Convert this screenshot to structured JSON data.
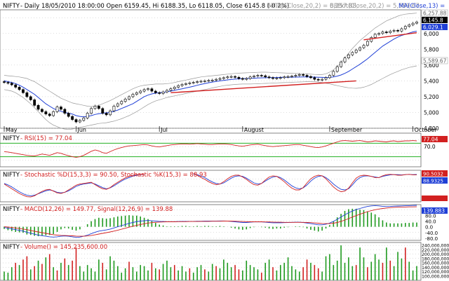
{
  "header": {
    "symbol": "NIFTY",
    "info": "- Daily 18/05/2010 18:00:00 Open 6159.45, Hi 6188.35, Lo 6118.05, Close 6145.8 (-0.2%)",
    "bb_top": "BBTop(Close,20,2) = 6,257.88,",
    "bb_bot": "BBBot(Close,20,2) = 5,589.67,",
    "ma": "MA(Close,13) ="
  },
  "panels": {
    "price": {
      "price_label": "6,145.8",
      "ma_label": "6,029.1",
      "bbtop_label": "6,257.88",
      "bbbot_label": "5,589.67",
      "yticks": [
        "6,000",
        "5,800",
        "5,600",
        "5,400",
        "5,200",
        "5,000",
        "4,800"
      ],
      "months": [
        "May",
        "Jun",
        "Jul",
        "August",
        "September",
        "October"
      ]
    },
    "rsi": {
      "symbol": "NIFTY",
      "title": "- RSI(15) = 77.04",
      "label": "77.04",
      "yticks": [
        "70.0"
      ]
    },
    "stoch": {
      "symbol": "NIFTY",
      "title": "- Stochastic %D(15,3,3) = 90.50, Stochastic %K(15,3) = 88.93",
      "d_label": "90.5032",
      "k_label": "88.9325"
    },
    "macd": {
      "symbol": "NIFTY",
      "title": "- MACD(12,26) = 149.77, Signal(12,26,9) = 139.88",
      "label": "139.883",
      "yticks": [
        "80.0",
        "40.0",
        "0.0",
        "-40.0",
        "-80.0"
      ]
    },
    "volume": {
      "symbol": "NIFTY",
      "title": "- Volume() = 145,235,600.00",
      "yticks": [
        "240,000,000",
        "220,000,000",
        "200,000,000",
        "180,000,000",
        "160,000,000",
        "140,000,000",
        "120,000,000",
        "100,000,000"
      ]
    }
  },
  "colors": {
    "ma": "#1f3fd6",
    "bb": "#999999",
    "trend": "#d22020",
    "rsi": "#d22020",
    "rsi_band": "#22b122",
    "stoch_d": "#1f3fd6",
    "stoch_k": "#d22020",
    "macd": "#1f3fd6",
    "signal": "#d22020",
    "hist": "#1f9a1f",
    "vol_up": "#1f9a1f",
    "vol_dn": "#d22020",
    "label_red": "#d22020",
    "label_blue": "#1f3fd6"
  },
  "chart_data": {
    "type": "candlestick",
    "price": {
      "ylim": [
        4800,
        6300
      ],
      "months": [
        [
          "May",
          0
        ],
        [
          "Jun",
          19
        ],
        [
          "Jul",
          41
        ],
        [
          "August",
          63
        ],
        [
          "September",
          86
        ],
        [
          "October",
          108
        ]
      ],
      "closes": [
        5380,
        5370,
        5350,
        5320,
        5290,
        5250,
        5200,
        5160,
        5090,
        5040,
        5010,
        4980,
        4960,
        5010,
        5070,
        5040,
        4990,
        4950,
        4910,
        4880,
        4900,
        4930,
        4990,
        5050,
        5080,
        5050,
        4990,
        4970,
        5020,
        5080,
        5110,
        5140,
        5170,
        5200,
        5230,
        5250,
        5270,
        5290,
        5300,
        5270,
        5250,
        5240,
        5260,
        5280,
        5300,
        5320,
        5340,
        5355,
        5365,
        5375,
        5380,
        5390,
        5395,
        5400,
        5405,
        5410,
        5420,
        5430,
        5440,
        5450,
        5455,
        5445,
        5430,
        5420,
        5430,
        5450,
        5460,
        5470,
        5465,
        5450,
        5440,
        5430,
        5435,
        5440,
        5450,
        5455,
        5460,
        5470,
        5480,
        5470,
        5455,
        5440,
        5420,
        5410,
        5420,
        5440,
        5470,
        5520,
        5580,
        5640,
        5690,
        5730,
        5760,
        5790,
        5820,
        5850,
        5900,
        5950,
        5990,
        6000,
        6020,
        6010,
        6030,
        6040,
        6030,
        6060,
        6090,
        6110,
        6130,
        6145.8
      ],
      "ma13": [
        5400,
        5390,
        5380,
        5365,
        5345,
        5320,
        5290,
        5260,
        5230,
        5190,
        5150,
        5110,
        5080,
        5050,
        5030,
        5015,
        5000,
        4990,
        4980,
        4960,
        4950,
        4945,
        4950,
        4960,
        4975,
        4985,
        4990,
        4995,
        5000,
        5015,
        5030,
        5050,
        5070,
        5090,
        5110,
        5140,
        5170,
        5200,
        5220,
        5235,
        5245,
        5250,
        5255,
        5262,
        5270,
        5280,
        5290,
        5300,
        5310,
        5320,
        5332,
        5344,
        5356,
        5366,
        5376,
        5385,
        5393,
        5400,
        5406,
        5412,
        5418,
        5422,
        5426,
        5428,
        5430,
        5432,
        5434,
        5436,
        5438,
        5440,
        5441,
        5442,
        5443,
        5444,
        5445,
        5446,
        5447,
        5448,
        5449,
        5450,
        5450,
        5449,
        5448,
        5446,
        5444,
        5443,
        5444,
        5450,
        5460,
        5475,
        5495,
        5520,
        5550,
        5580,
        5610,
        5645,
        5680,
        5720,
        5760,
        5800,
        5840,
        5870,
        5900,
        5930,
        5955,
        5975,
        5990,
        6005,
        6020,
        6029.1
      ],
      "bbtop": [
        5470,
        5465,
        5460,
        5455,
        5450,
        5440,
        5430,
        5410,
        5390,
        5360,
        5330,
        5300,
        5270,
        5240,
        5210,
        5180,
        5160,
        5140,
        5120,
        5110,
        5100,
        5090,
        5080,
        5075,
        5080,
        5090,
        5110,
        5130,
        5150,
        5175,
        5200,
        5225,
        5250,
        5275,
        5300,
        5320,
        5335,
        5345,
        5350,
        5355,
        5360,
        5360,
        5360,
        5365,
        5370,
        5380,
        5390,
        5400,
        5410,
        5420,
        5430,
        5440,
        5450,
        5455,
        5460,
        5465,
        5470,
        5475,
        5480,
        5485,
        5490,
        5495,
        5498,
        5500,
        5502,
        5504,
        5506,
        5508,
        5510,
        5510,
        5508,
        5506,
        5504,
        5502,
        5500,
        5498,
        5496,
        5494,
        5492,
        5490,
        5488,
        5485,
        5482,
        5480,
        5480,
        5490,
        5510,
        5540,
        5580,
        5630,
        5690,
        5750,
        5810,
        5860,
        5910,
        5950,
        5990,
        6030,
        6070,
        6100,
        6130,
        6160,
        6180,
        6200,
        6220,
        6235,
        6245,
        6250,
        6255,
        6257.88
      ],
      "bbbot": [
        5290,
        5280,
        5270,
        5250,
        5220,
        5190,
        5150,
        5110,
        5060,
        5010,
        4960,
        4910,
        4870,
        4840,
        4820,
        4800,
        4790,
        4785,
        4790,
        4800,
        4810,
        4820,
        4830,
        4840,
        4850,
        4860,
        4865,
        4870,
        4880,
        4890,
        4905,
        4920,
        4940,
        4960,
        4985,
        5010,
        5040,
        5070,
        5100,
        5125,
        5145,
        5160,
        5175,
        5190,
        5200,
        5210,
        5220,
        5230,
        5240,
        5250,
        5260,
        5270,
        5280,
        5290,
        5300,
        5310,
        5320,
        5330,
        5340,
        5345,
        5350,
        5355,
        5358,
        5360,
        5360,
        5360,
        5362,
        5364,
        5366,
        5368,
        5370,
        5372,
        5374,
        5376,
        5378,
        5380,
        5382,
        5384,
        5386,
        5388,
        5390,
        5392,
        5390,
        5385,
        5378,
        5370,
        5362,
        5350,
        5340,
        5330,
        5320,
        5312,
        5308,
        5306,
        5310,
        5320,
        5335,
        5355,
        5380,
        5405,
        5430,
        5455,
        5480,
        5500,
        5520,
        5540,
        5555,
        5570,
        5580,
        5589.67
      ],
      "trend_lines": [
        {
          "start": [
            44,
            5250
          ],
          "end": [
            93,
            5400
          ]
        },
        {
          "start": [
            95,
            5920
          ],
          "end": [
            109,
            6010
          ]
        }
      ]
    },
    "rsi": {
      "ylim": [
        0,
        100
      ],
      "bands": [
        30,
        70
      ],
      "values": [
        45,
        44,
        42,
        40,
        38,
        36,
        34,
        33,
        32,
        35,
        38,
        36,
        34,
        38,
        42,
        40,
        36,
        33,
        30,
        28,
        30,
        34,
        40,
        46,
        50,
        47,
        42,
        40,
        45,
        50,
        54,
        57,
        60,
        62,
        63,
        64,
        65,
        66,
        65,
        62,
        60,
        59,
        61,
        63,
        65,
        66,
        67,
        68,
        68,
        67,
        68,
        69,
        68,
        67,
        66,
        66,
        67,
        68,
        68,
        67,
        66,
        64,
        62,
        61,
        63,
        65,
        66,
        67,
        65,
        63,
        61,
        60,
        61,
        62,
        63,
        64,
        65,
        66,
        66,
        64,
        62,
        60,
        58,
        57,
        59,
        62,
        66,
        70,
        74,
        77,
        78,
        77,
        76,
        77,
        78,
        76,
        74,
        75,
        77,
        76,
        75,
        74,
        76,
        77,
        75,
        76,
        77,
        77,
        78,
        77.04
      ]
    },
    "stochastic": {
      "ylim": [
        0,
        100
      ],
      "d": [
        60,
        55,
        48,
        40,
        32,
        25,
        20,
        18,
        20,
        25,
        30,
        35,
        38,
        35,
        30,
        28,
        30,
        35,
        42,
        50,
        55,
        58,
        60,
        62,
        58,
        52,
        46,
        42,
        45,
        52,
        60,
        68,
        75,
        80,
        85,
        88,
        90,
        90,
        null,
        null,
        null,
        null,
        null,
        null,
        null,
        null,
        null,
        null,
        null,
        null,
        92,
        90,
        85,
        80,
        72,
        65,
        60,
        58,
        62,
        70,
        78,
        84,
        86,
        84,
        78,
        70,
        62,
        58,
        60,
        68,
        76,
        82,
        84,
        80,
        72,
        62,
        52,
        45,
        42,
        45,
        55,
        68,
        78,
        84,
        86,
        80,
        70,
        58,
        48,
        40,
        38,
        42,
        55,
        70,
        80,
        85,
        86,
        84,
        82,
        80,
        84,
        87,
        89,
        90,
        90,
        89,
        90,
        91,
        90,
        90.5
      ],
      "k": [
        58,
        50,
        42,
        34,
        26,
        20,
        15,
        14,
        18,
        26,
        33,
        38,
        40,
        34,
        28,
        26,
        30,
        38,
        46,
        54,
        58,
        60,
        62,
        64,
        56,
        48,
        42,
        40,
        46,
        56,
        64,
        72,
        79,
        84,
        88,
        90,
        91,
        91,
        null,
        null,
        null,
        null,
        null,
        null,
        null,
        null,
        null,
        null,
        null,
        null,
        94,
        88,
        80,
        74,
        66,
        60,
        56,
        58,
        66,
        76,
        84,
        88,
        88,
        82,
        74,
        64,
        56,
        54,
        60,
        72,
        82,
        86,
        84,
        76,
        66,
        54,
        44,
        38,
        38,
        46,
        62,
        76,
        84,
        88,
        86,
        76,
        62,
        48,
        38,
        32,
        34,
        44,
        62,
        78,
        86,
        88,
        87,
        84,
        80,
        80,
        86,
        90,
        91,
        90,
        88,
        88,
        90,
        91,
        89,
        88.93
      ]
    },
    "macd": {
      "ylim": [
        -90,
        150
      ],
      "macd": [
        -5,
        -10,
        -15,
        -20,
        -25,
        -30,
        -38,
        -45,
        -52,
        -58,
        -62,
        -66,
        -70,
        -72,
        -70,
        -66,
        -64,
        -66,
        -70,
        -74,
        -72,
        -66,
        -58,
        -48,
        -38,
        -30,
        -26,
        -22,
        -16,
        -8,
        0,
        8,
        16,
        24,
        30,
        36,
        40,
        42,
        44,
        42,
        40,
        38,
        37,
        36,
        36,
        36,
        37,
        38,
        38,
        38,
        38,
        39,
        39,
        40,
        40,
        40,
        40,
        41,
        41,
        40,
        38,
        35,
        32,
        30,
        30,
        32,
        34,
        35,
        34,
        32,
        30,
        28,
        28,
        28,
        29,
        30,
        31,
        32,
        32,
        30,
        26,
        22,
        18,
        14,
        14,
        18,
        26,
        38,
        52,
        68,
        84,
        98,
        110,
        120,
        128,
        136,
        142,
        146,
        148,
        146,
        143,
        141,
        142,
        144,
        145,
        146,
        147,
        148,
        149,
        149.77
      ],
      "signal": [
        0,
        -2,
        -5,
        -8,
        -12,
        -16,
        -20,
        -26,
        -31,
        -36,
        -41,
        -46,
        -51,
        -55,
        -58,
        -60,
        -61,
        -62,
        -63,
        -65,
        -66,
        -66,
        -64,
        -61,
        -56,
        -51,
        -46,
        -41,
        -36,
        -30,
        -24,
        -17,
        -10,
        -3,
        4,
        10,
        16,
        21,
        26,
        29,
        31,
        33,
        34,
        35,
        35,
        35,
        36,
        36,
        36,
        37,
        37,
        37,
        38,
        38,
        38,
        39,
        39,
        39,
        40,
        40,
        40,
        39,
        38,
        37,
        36,
        35,
        35,
        35,
        35,
        34,
        34,
        33,
        32,
        32,
        31,
        31,
        31,
        31,
        31,
        31,
        30,
        29,
        27,
        25,
        23,
        22,
        22,
        25,
        30,
        38,
        47,
        57,
        68,
        78,
        88,
        97,
        106,
        113,
        119,
        124,
        128,
        131,
        134,
        136,
        137,
        138,
        138,
        139,
        139,
        139.88
      ]
    },
    "volume": {
      "ylim": [
        80000000,
        250000000
      ],
      "values": [
        120,
        115,
        140,
        160,
        150,
        175,
        190,
        130,
        145,
        170,
        155,
        185,
        200,
        140,
        125,
        160,
        180,
        150,
        170,
        230,
        145,
        120,
        150,
        135,
        120,
        175,
        160,
        130,
        190,
        170,
        145,
        115,
        135,
        165,
        140,
        120,
        150,
        145,
        125,
        160,
        135,
        130,
        155,
        170,
        140,
        150,
        125,
        145,
        120,
        135,
        115,
        140,
        150,
        130,
        120,
        155,
        145,
        135,
        175,
        160,
        140,
        150,
        130,
        125,
        170,
        150,
        140,
        130,
        115,
        160,
        175,
        140,
        125,
        150,
        160,
        185,
        145,
        130,
        120,
        140,
        175,
        160,
        150,
        135,
        120,
        190,
        200,
        150,
        170,
        240,
        160,
        185,
        145,
        150,
        230,
        185,
        140,
        165,
        200,
        175,
        160,
        230,
        170,
        145,
        210,
        180,
        230,
        165,
        125,
        145.2356
      ],
      "down_days": [
        3,
        5,
        6,
        8,
        10,
        12,
        14,
        16,
        18,
        19,
        26,
        33,
        39,
        41,
        45,
        49,
        53,
        56,
        61,
        62,
        68,
        71,
        79,
        80,
        82,
        83,
        93,
        96,
        100,
        102,
        106
      ]
    }
  }
}
